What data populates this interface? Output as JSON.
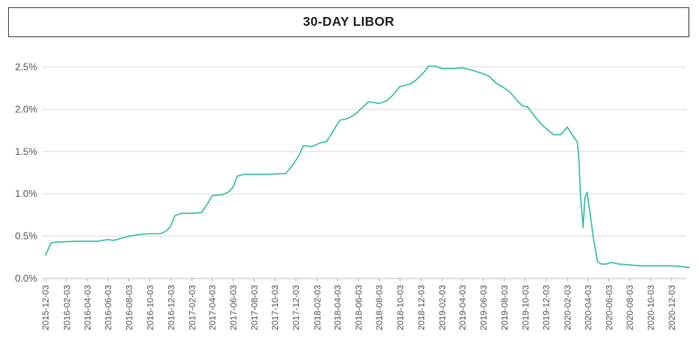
{
  "chart_data": {
    "type": "line",
    "title": "30-DAY LIBOR",
    "xlabel": "",
    "ylabel": "",
    "ylim": [
      0,
      2.5
    ],
    "ytick_labels": [
      "0.0%",
      "0.5%",
      "1.0%",
      "1.5%",
      "2.0%",
      "2.5%"
    ],
    "ytick_values": [
      0,
      0.5,
      1.0,
      1.5,
      2.0,
      2.5
    ],
    "xtick_labels": [
      "2015-12-03",
      "2016-02-03",
      "2016-04-03",
      "2016-06-03",
      "2016-08-03",
      "2016-10-03",
      "2016-12-03",
      "2017-02-03",
      "2017-04-03",
      "2017-06-03",
      "2017-08-03",
      "2017-10-03",
      "2017-12-03",
      "2018-02-03",
      "2018-04-03",
      "2018-06-03",
      "2018-08-03",
      "2018-10-03",
      "2018-12-03",
      "2019-02-03",
      "2019-04-03",
      "2019-06-03",
      "2019-08-03",
      "2019-10-03",
      "2019-12-03",
      "2020-02-03",
      "2020-04-03",
      "2020-06-03",
      "2020-08-03",
      "2020-10-03",
      "2020-12-03"
    ],
    "grid": true,
    "colors": {
      "line": "#3dbfa8",
      "grid": "#dddddd",
      "axis": "#bbbbbb"
    },
    "series": [
      {
        "x": [
          "2015-12-03",
          "2015-12-20",
          "2016-01-03",
          "2016-03-03",
          "2016-05-03",
          "2016-06-03",
          "2016-06-20",
          "2016-08-03",
          "2016-09-03",
          "2016-10-03",
          "2016-11-03",
          "2016-11-20",
          "2016-12-03",
          "2016-12-15",
          "2017-01-03",
          "2017-02-03",
          "2017-03-03",
          "2017-03-20",
          "2017-04-03",
          "2017-05-03",
          "2017-05-20",
          "2017-06-03",
          "2017-06-15",
          "2017-07-03",
          "2017-09-03",
          "2017-11-03",
          "2017-11-20",
          "2017-12-10",
          "2017-12-25",
          "2018-01-20",
          "2018-02-10",
          "2018-03-03",
          "2018-03-20",
          "2018-04-10",
          "2018-05-03",
          "2018-05-25",
          "2018-06-15",
          "2018-07-03",
          "2018-08-03",
          "2018-08-25",
          "2018-09-15",
          "2018-10-03",
          "2018-11-03",
          "2018-11-20",
          "2018-12-10",
          "2018-12-25",
          "2019-01-15",
          "2019-02-03",
          "2019-03-03",
          "2019-04-03",
          "2019-05-03",
          "2019-06-03",
          "2019-06-20",
          "2019-07-10",
          "2019-08-01",
          "2019-08-20",
          "2019-09-10",
          "2019-09-25",
          "2019-10-10",
          "2019-11-03",
          "2019-11-25",
          "2019-12-10",
          "2019-12-25",
          "2020-01-15",
          "2020-02-03",
          "2020-02-25",
          "2020-03-03",
          "2020-03-08",
          "2020-03-12",
          "2020-03-16",
          "2020-03-20",
          "2020-03-25",
          "2020-04-01",
          "2020-04-05",
          "2020-04-10",
          "2020-04-20",
          "2020-05-01",
          "2020-05-12",
          "2020-05-25",
          "2020-06-10",
          "2020-07-03",
          "2020-08-03",
          "2020-09-03",
          "2020-10-03",
          "2020-11-03",
          "2020-12-03",
          "2021-01-03",
          "2021-01-25"
        ],
        "values": [
          0.27,
          0.42,
          0.43,
          0.44,
          0.44,
          0.46,
          0.45,
          0.5,
          0.52,
          0.53,
          0.53,
          0.56,
          0.62,
          0.74,
          0.77,
          0.77,
          0.78,
          0.88,
          0.98,
          0.99,
          1.02,
          1.08,
          1.21,
          1.23,
          1.23,
          1.24,
          1.32,
          1.44,
          1.57,
          1.56,
          1.6,
          1.62,
          1.73,
          1.87,
          1.89,
          1.94,
          2.02,
          2.09,
          2.07,
          2.1,
          2.18,
          2.27,
          2.3,
          2.35,
          2.43,
          2.51,
          2.51,
          2.48,
          2.48,
          2.49,
          2.46,
          2.42,
          2.39,
          2.31,
          2.26,
          2.2,
          2.1,
          2.04,
          2.03,
          1.9,
          1.8,
          1.75,
          1.7,
          1.7,
          1.79,
          1.65,
          1.62,
          1.4,
          1.0,
          0.8,
          0.6,
          0.95,
          1.02,
          0.9,
          0.75,
          0.45,
          0.2,
          0.17,
          0.17,
          0.19,
          0.17,
          0.16,
          0.15,
          0.15,
          0.15,
          0.15,
          0.14,
          0.13
        ]
      }
    ]
  }
}
